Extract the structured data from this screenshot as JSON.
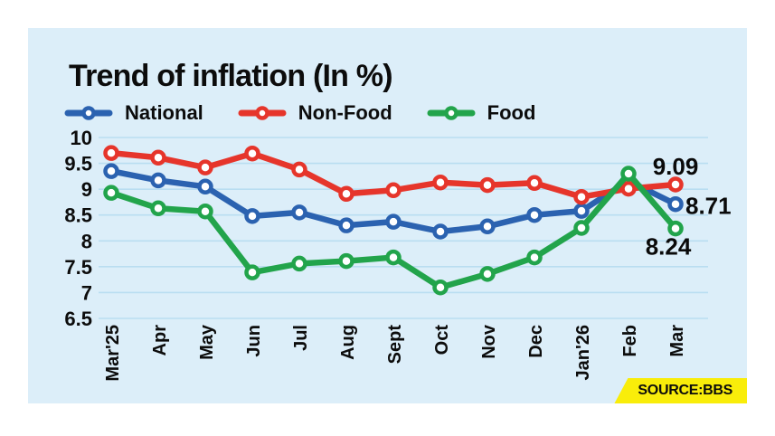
{
  "card": {
    "title": "Trend of inflation (In %)",
    "source_label": "SOURCE:",
    "source_value": "BBS"
  },
  "colors": {
    "background": "#ffffff",
    "card_background": "#dceef9",
    "gridline": "#b9ddf1",
    "text": "#0c0c0c",
    "source_badge_yellow": "#f9ed0a",
    "national_blue": "#2b62b0",
    "nonfood_red": "#e6352b",
    "food_green": "#22a44b"
  },
  "chart_data": {
    "type": "line",
    "title": "Trend of inflation (In %)",
    "categories": [
      "Mar'25",
      "Apr",
      "May",
      "Jun",
      "Jul",
      "Aug",
      "Sept",
      "Oct",
      "Nov",
      "Dec",
      "Jan'26",
      "Feb",
      "Mar"
    ],
    "series": [
      {
        "name": "National",
        "color": "#2b62b0",
        "values": [
          9.35,
          9.17,
          9.05,
          8.48,
          8.55,
          8.3,
          8.37,
          8.18,
          8.28,
          8.5,
          8.58,
          9.16,
          8.71
        ]
      },
      {
        "name": "Non-Food",
        "color": "#e6352b",
        "values": [
          9.7,
          9.61,
          9.42,
          9.69,
          9.38,
          8.91,
          8.98,
          9.13,
          9.08,
          9.12,
          8.85,
          9.01,
          9.09
        ]
      },
      {
        "name": "Food",
        "color": "#22a44b",
        "values": [
          8.93,
          8.63,
          8.57,
          7.39,
          7.56,
          7.61,
          7.68,
          7.1,
          7.36,
          7.68,
          8.25,
          9.3,
          8.24
        ]
      }
    ],
    "ylim": [
      6.5,
      10
    ],
    "yticks": [
      10,
      9.5,
      9,
      8.5,
      8,
      7.5,
      7,
      6.5
    ],
    "ytick_labels": [
      "10",
      "9.5",
      "9",
      "8.5",
      "8",
      "7.5",
      "7",
      "6.5"
    ],
    "grid": "horizontal",
    "legend_position": "top",
    "end_labels": [
      {
        "series": "Non-Food",
        "text": "9.09"
      },
      {
        "series": "National",
        "text": "8.71"
      },
      {
        "series": "Food",
        "text": "8.24"
      }
    ]
  }
}
